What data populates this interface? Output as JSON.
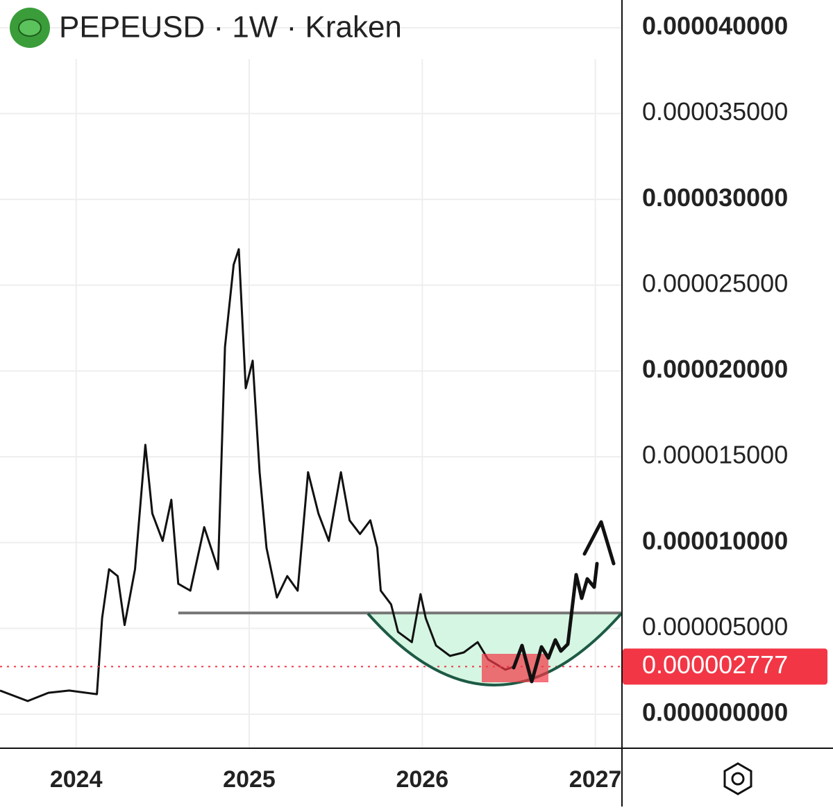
{
  "chart_data": {
    "type": "line",
    "title": "PEPEUSD · 1W · Kraken",
    "x": [
      2023.56,
      2023.72,
      2023.84,
      2023.96,
      2024.12,
      2024.15,
      2024.19,
      2024.24,
      2024.28,
      2024.34,
      2024.4,
      2024.44,
      2024.5,
      2024.55,
      2024.59,
      2024.66,
      2024.74,
      2024.82,
      2024.86,
      2024.91,
      2024.94,
      2024.98,
      2025.02,
      2025.06,
      2025.1,
      2025.16,
      2025.22,
      2025.28,
      2025.34,
      2025.4,
      2025.46,
      2025.53,
      2025.58,
      2025.64,
      2025.7,
      2025.74,
      2025.76,
      2025.82,
      2025.86,
      2025.94,
      2025.99,
      2026.02,
      2026.08,
      2026.16,
      2026.24,
      2026.32,
      2026.38,
      2026.48,
      2026.53
    ],
    "series": [
      {
        "name": "PEPEUSD",
        "color": "#111111",
        "values": [
          1.38e-06,
          7.7e-07,
          1.25e-06,
          1.38e-06,
          1.17e-06,
          5.6e-06,
          8.45e-06,
          8.05e-06,
          5.2e-06,
          8.45e-06,
          1.57e-05,
          1.17e-05,
          1.01e-05,
          1.25e-05,
          7.6e-06,
          7.2e-06,
          1.09e-05,
          8.45e-06,
          2.14e-05,
          2.62e-05,
          2.71e-05,
          1.9e-05,
          2.06e-05,
          1.41e-05,
          9.7e-06,
          6.8e-06,
          8.05e-06,
          7.2e-06,
          1.41e-05,
          1.17e-05,
          1.01e-05,
          1.41e-05,
          1.13e-05,
          1.05e-05,
          1.13e-05,
          9.7e-06,
          7.2e-06,
          6.4e-06,
          4.8e-06,
          4.2e-06,
          7e-06,
          5.6e-06,
          4e-06,
          3.4e-06,
          3.6e-06,
          4.2e-06,
          3.2e-06,
          2.6e-06,
          2.777e-06
        ]
      }
    ],
    "last_price": {
      "value": 2.777e-06,
      "label": "0.000002777"
    },
    "support_level": 5.9e-06,
    "xlim": [
      2023.56,
      2027.15
    ],
    "xticks": [
      2024,
      2025,
      2026,
      2027
    ],
    "ylim": [
      -1.98e-06,
      4.162e-05
    ],
    "yticks": [
      {
        "value": 0,
        "label": "0.000000000"
      },
      {
        "value": 5e-06,
        "label": "0.000005000"
      },
      {
        "value": 1e-05,
        "label": "0.000010000"
      },
      {
        "value": 1.5e-05,
        "label": "0.000015000"
      },
      {
        "value": 2e-05,
        "label": "0.000020000"
      },
      {
        "value": 2.5e-05,
        "label": "0.000025000"
      },
      {
        "value": 3e-05,
        "label": "0.000030000"
      },
      {
        "value": 3.5e-05,
        "label": "0.000035000"
      },
      {
        "value": 4e-05,
        "label": "0.000040000"
      }
    ],
    "grid": true
  }
}
